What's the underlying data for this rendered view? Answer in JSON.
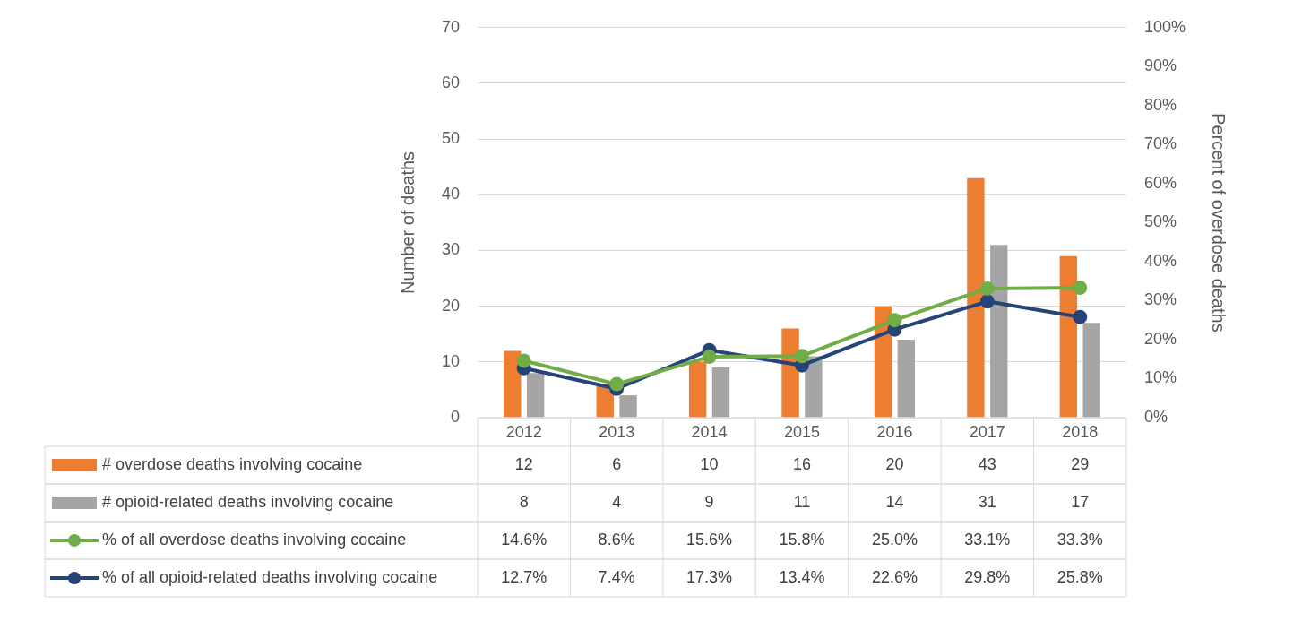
{
  "chart_data": {
    "type": "bar",
    "categories": [
      "2012",
      "2013",
      "2014",
      "2015",
      "2016",
      "2017",
      "2018"
    ],
    "ylabel": "Number of deaths",
    "y2label": "Percent of overdose deaths",
    "ylim": [
      0,
      70
    ],
    "yticks": [
      0,
      10,
      20,
      30,
      40,
      50,
      60,
      70
    ],
    "y2lim": [
      0,
      100
    ],
    "y2ticks": [
      {
        "value": 0,
        "label": "0%"
      },
      {
        "value": 10,
        "label": "10%"
      },
      {
        "value": 20,
        "label": "20%"
      },
      {
        "value": 30,
        "label": "30%"
      },
      {
        "value": 40,
        "label": "40%"
      },
      {
        "value": 50,
        "label": "50%"
      },
      {
        "value": 60,
        "label": "60%"
      },
      {
        "value": 70,
        "label": "70%"
      },
      {
        "value": 80,
        "label": "80%"
      },
      {
        "value": 90,
        "label": "90%"
      },
      {
        "value": 100,
        "label": "100%"
      }
    ],
    "grid": "y",
    "legend": "bottom",
    "marker": "circle",
    "line_style": "solid",
    "series": [
      {
        "name": "# overdose deaths involving cocaine",
        "color": "#ed7d31",
        "values": [
          12,
          6,
          10,
          16,
          20,
          43,
          29
        ],
        "value_labels": [
          "12",
          "6",
          "10",
          "16",
          "20",
          "43",
          "29"
        ]
      },
      {
        "name": "# opioid-related deaths involving cocaine",
        "color": "#a5a5a5",
        "values": [
          8,
          4,
          9,
          11,
          14,
          31,
          17
        ],
        "value_labels": [
          "8",
          "4",
          "9",
          "11",
          "14",
          "31",
          "17"
        ]
      },
      {
        "name": "% of all overdose deaths involving cocaine",
        "type": "line",
        "axis": "y2",
        "color": "#70ad47",
        "values": [
          14.6,
          8.6,
          15.6,
          15.8,
          25.0,
          33.1,
          33.3
        ],
        "value_labels": [
          "14.6%",
          "8.6%",
          "15.6%",
          "15.8%",
          "25.0%",
          "33.1%",
          "33.3%"
        ]
      },
      {
        "name": "% of all opioid-related deaths involving cocaine",
        "type": "line",
        "axis": "y2",
        "color": "#264478",
        "values": [
          12.7,
          7.4,
          17.3,
          13.4,
          22.6,
          29.8,
          25.8
        ],
        "value_labels": [
          "12.7%",
          "7.4%",
          "17.3%",
          "13.4%",
          "22.6%",
          "29.8%",
          "25.8%"
        ]
      }
    ]
  }
}
